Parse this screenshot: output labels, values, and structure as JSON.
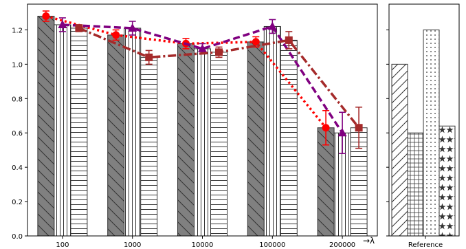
{
  "chart_data": [
    {
      "type": "bar",
      "categories": [
        "100",
        "1000",
        "10000",
        "100000",
        "200000"
      ],
      "xlabel": "→λ",
      "ylabel": "",
      "ylim": [
        0,
        1.35
      ],
      "yticks": [
        0.0,
        0.2,
        0.4,
        0.6,
        0.8,
        1.0,
        1.2
      ],
      "grid": false,
      "bar_series": [
        {
          "hatch": "backslash",
          "fill": "#808080",
          "values": [
            1.28,
            1.17,
            1.12,
            1.13,
            0.63
          ]
        },
        {
          "hatch": "vertical",
          "fill": "#ffffff",
          "values": [
            1.23,
            1.21,
            1.09,
            1.22,
            0.6
          ]
        },
        {
          "hatch": "horizontal",
          "fill": "#ffffff",
          "values": [
            1.21,
            1.04,
            1.07,
            1.14,
            0.63
          ]
        }
      ],
      "line_series": [
        {
          "color": "#ff0000",
          "style": "dotted",
          "marker": "circle",
          "values": [
            1.28,
            1.17,
            1.12,
            1.13,
            0.63
          ],
          "errors": [
            0.03,
            0.03,
            0.03,
            0.03,
            0.1
          ]
        },
        {
          "color": "#800080",
          "style": "dashed",
          "marker": "triangle",
          "values": [
            1.23,
            1.21,
            1.09,
            1.22,
            0.6
          ],
          "errors": [
            0.04,
            0.04,
            0.03,
            0.04,
            0.12
          ]
        },
        {
          "color": "#a52a2a",
          "style": "dashdot",
          "marker": "square",
          "values": [
            1.21,
            1.04,
            1.07,
            1.14,
            0.63
          ],
          "errors": [
            0.02,
            0.04,
            0.03,
            0.05,
            0.12
          ]
        }
      ]
    },
    {
      "type": "bar",
      "categories": [
        "Reference"
      ],
      "ylim": [
        0,
        1.35
      ],
      "bar_series": [
        {
          "hatch": "forward",
          "fill": "#ffffff",
          "values": [
            1.0
          ]
        },
        {
          "hatch": "grid",
          "fill": "#ffffff",
          "values": [
            0.6
          ]
        },
        {
          "hatch": "dots",
          "fill": "#ffffff",
          "values": [
            1.2
          ]
        },
        {
          "hatch": "stars",
          "fill": "#ffffff",
          "values": [
            0.64
          ]
        }
      ]
    }
  ]
}
